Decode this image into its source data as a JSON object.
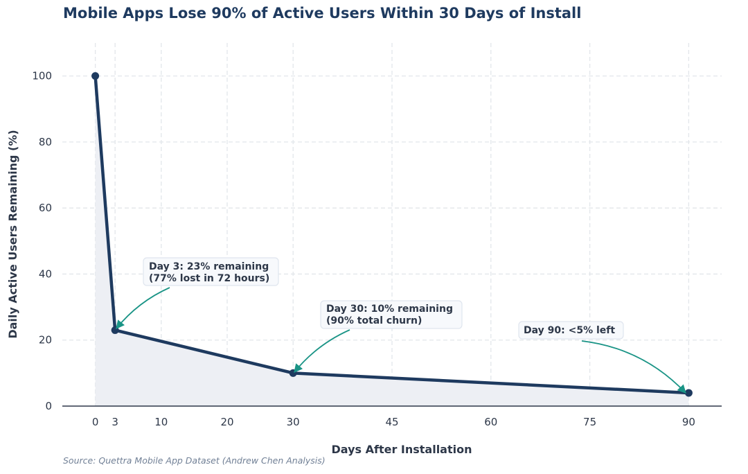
{
  "title": "Mobile Apps Lose 90% of Active Users Within 30 Days of Install",
  "source": "Source: Quettra Mobile App Dataset (Andrew Chen Analysis)",
  "colors": {
    "line": "#1e3a5f",
    "fill": "#edeff4",
    "arrow": "#1a9486",
    "grid": "#e2e6ea",
    "axis": "#2d3748"
  },
  "chart_data": {
    "type": "line",
    "x": [
      0,
      3,
      30,
      90
    ],
    "values": [
      100,
      23,
      10,
      4
    ],
    "xlabel": "Days After Installation",
    "ylabel": "Daily Active Users Remaining (%)",
    "xlim": [
      -5,
      95
    ],
    "ylim": [
      0,
      110
    ],
    "x_ticks": [
      0,
      3,
      10,
      20,
      30,
      45,
      60,
      75,
      90
    ],
    "y_ticks": [
      0,
      20,
      40,
      60,
      80,
      100
    ],
    "grid": true,
    "fill_under": true,
    "annotations": [
      {
        "lines": [
          "Day 3: 23% remaining",
          "(77% lost in 72 hours)"
        ],
        "target": [
          3,
          23
        ]
      },
      {
        "lines": [
          "Day 30: 10% remaining",
          "(90% total churn)"
        ],
        "target": [
          30,
          10
        ]
      },
      {
        "lines": [
          "Day 90: <5% left"
        ],
        "target": [
          90,
          4
        ]
      }
    ]
  }
}
